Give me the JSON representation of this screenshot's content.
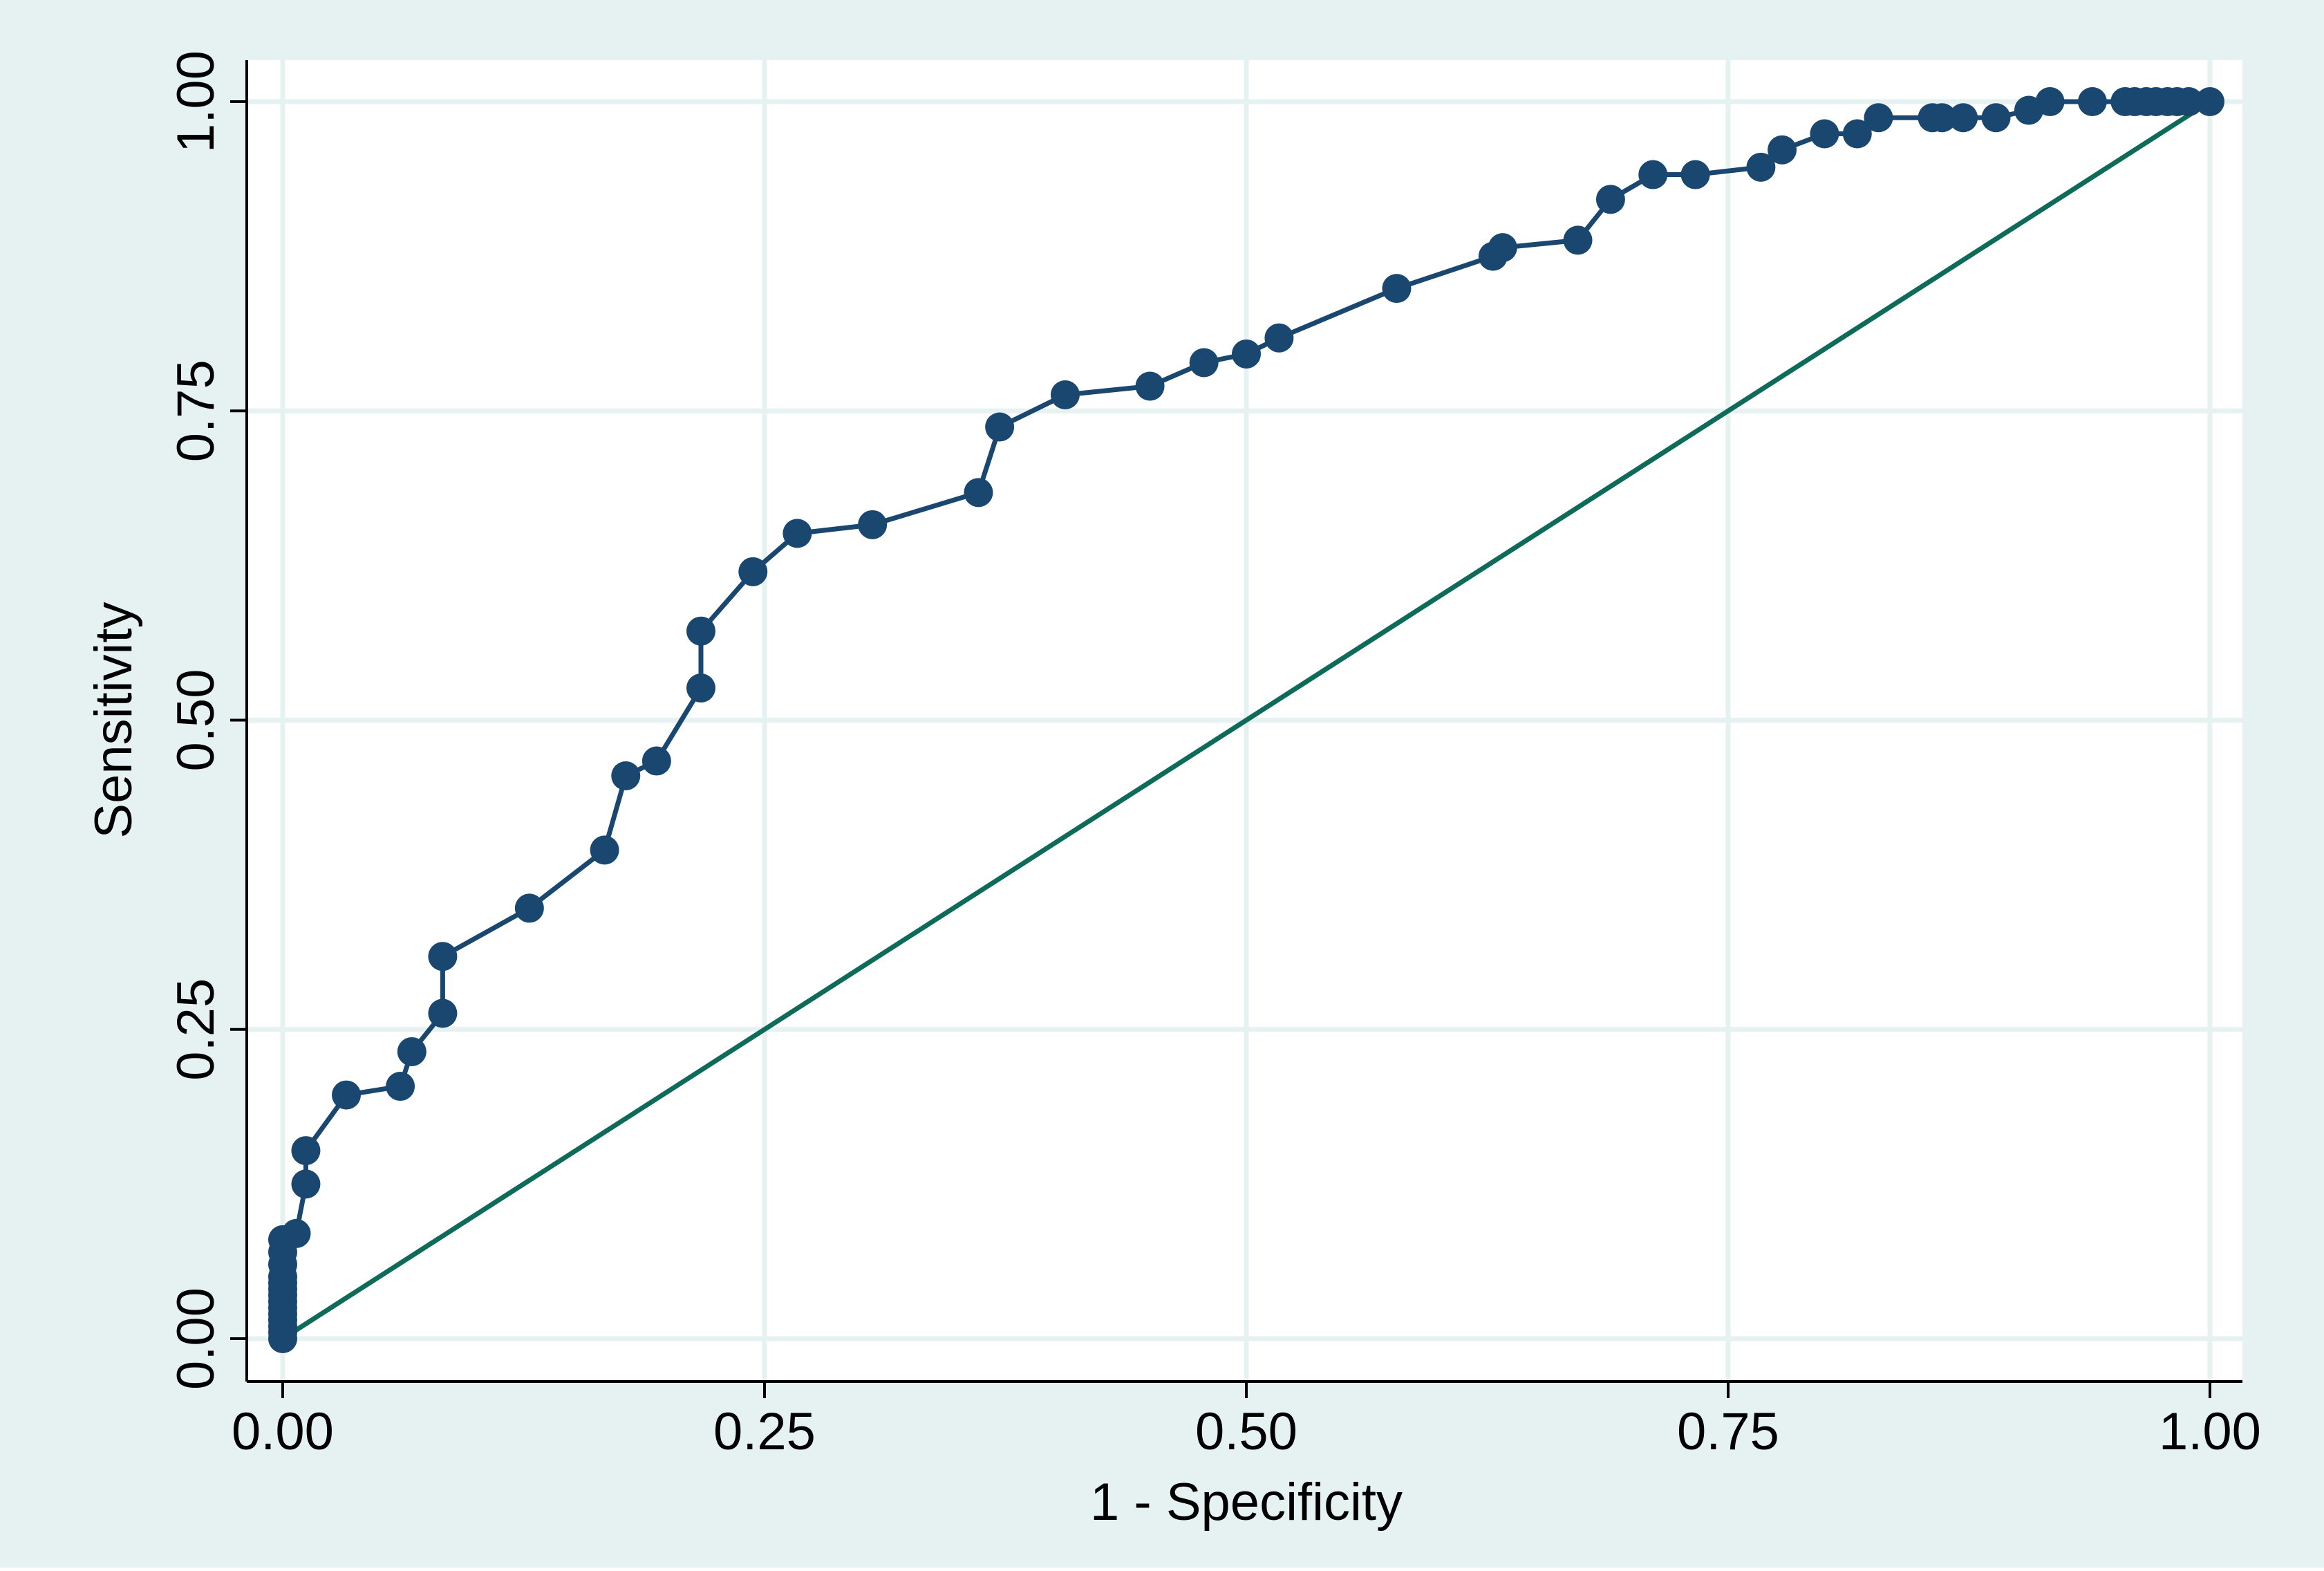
{
  "chart_data": {
    "type": "line",
    "xlabel": "1 - Specificity",
    "ylabel": "Sensitivity",
    "xlim": [
      0,
      1
    ],
    "ylim": [
      0,
      1
    ],
    "xticks": [
      "0.00",
      "0.25",
      "0.50",
      "0.75",
      "1.00"
    ],
    "yticks": [
      "0.00",
      "0.25",
      "0.50",
      "0.75",
      "1.00"
    ],
    "grid": true,
    "legend": "none",
    "colors": {
      "outer_background": "#e6f1f1",
      "plot_background": "#ffffff",
      "grid": "#e6f1f1",
      "roc_curve": "#1a476f",
      "reference_line": "#0e6b5a"
    },
    "series": [
      {
        "marker": "circle",
        "x": [
          0,
          0,
          0,
          0,
          0,
          0,
          0,
          0,
          0,
          0,
          0,
          0,
          0,
          0,
          0.007,
          0.012,
          0.012,
          0.033,
          0.061,
          0.067,
          0.083,
          0.083,
          0.128,
          0.167,
          0.178,
          0.194,
          0.217,
          0.217,
          0.244,
          0.267,
          0.306,
          0.361,
          0.372,
          0.406,
          0.45,
          0.478,
          0.5,
          0.517,
          0.578,
          0.628,
          0.633,
          0.672,
          0.689,
          0.711,
          0.733,
          0.767,
          0.778,
          0.8,
          0.817,
          0.828,
          0.856,
          0.861,
          0.872,
          0.889,
          0.906,
          0.917,
          0.939,
          0.956,
          0.961,
          0.967,
          0.972,
          0.978,
          0.983,
          0.989,
          1.0
        ],
        "y": [
          0,
          0.005,
          0.01,
          0.015,
          0.02,
          0.025,
          0.03,
          0.035,
          0.04,
          0.045,
          0.05,
          0.06,
          0.07,
          0.08,
          0.085,
          0.125,
          0.152,
          0.197,
          0.204,
          0.232,
          0.263,
          0.309,
          0.348,
          0.395,
          0.455,
          0.467,
          0.526,
          0.572,
          0.62,
          0.651,
          0.658,
          0.684,
          0.737,
          0.763,
          0.77,
          0.789,
          0.796,
          0.809,
          0.849,
          0.875,
          0.882,
          0.888,
          0.921,
          0.941,
          0.941,
          0.947,
          0.961,
          0.974,
          0.974,
          0.987,
          0.987,
          0.987,
          0.987,
          0.987,
          0.993,
          1.0,
          1.0,
          1.0,
          1.0,
          1.0,
          1.0,
          1.0,
          1.0,
          1.0,
          1.0
        ]
      },
      {
        "marker": "none",
        "x": [
          0,
          1
        ],
        "y": [
          0,
          1
        ]
      }
    ]
  }
}
